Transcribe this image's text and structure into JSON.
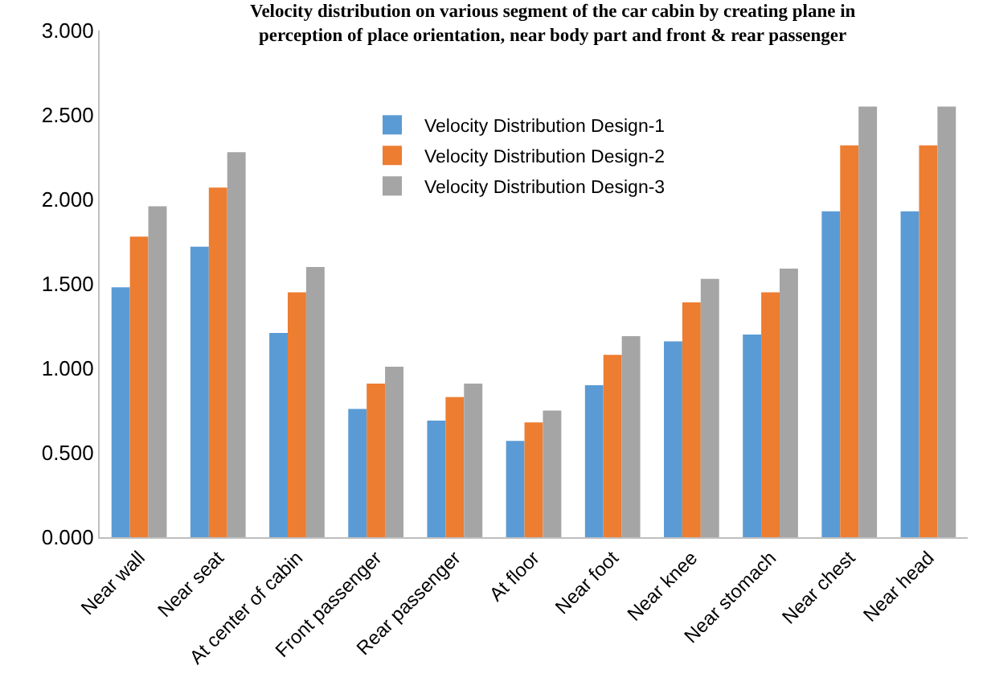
{
  "chart_data": {
    "type": "bar",
    "title": "Velocity distribution on various segment of the car cabin by creating plane in\nperception of place orientation, near body part and front & rear passenger",
    "categories": [
      "Near wall",
      "Near seat",
      "At center of cabin",
      "Front passenger",
      "Rear passenger",
      "At floor",
      "Near foot",
      "Near knee",
      "Near stomach",
      "Near chest",
      "Near head"
    ],
    "series": [
      {
        "name": "Velocity Distribution Design-1",
        "color": "#5b9bd5",
        "values": [
          1.48,
          1.72,
          1.21,
          0.76,
          0.69,
          0.57,
          0.9,
          1.16,
          1.2,
          1.93,
          1.93
        ]
      },
      {
        "name": "Velocity Distribution Design-2",
        "color": "#ed7d31",
        "values": [
          1.78,
          2.07,
          1.45,
          0.91,
          0.83,
          0.68,
          1.08,
          1.39,
          1.45,
          2.32,
          2.32
        ]
      },
      {
        "name": "Velocity Distribution Design-3",
        "color": "#a5a5a5",
        "values": [
          1.96,
          2.28,
          1.6,
          1.01,
          0.91,
          0.75,
          1.19,
          1.53,
          1.59,
          2.55,
          2.55
        ]
      }
    ],
    "ylim": [
      0,
      3
    ],
    "yticks": [
      {
        "value": 0,
        "label": "0.000"
      },
      {
        "value": 0.5,
        "label": "0.500"
      },
      {
        "value": 1,
        "label": "1.000"
      },
      {
        "value": 1.5,
        "label": "1.500"
      },
      {
        "value": 2,
        "label": "2.000"
      },
      {
        "value": 2.5,
        "label": "2.500"
      },
      {
        "value": 3,
        "label": "3.000"
      }
    ],
    "grid": false,
    "legend": "top"
  }
}
